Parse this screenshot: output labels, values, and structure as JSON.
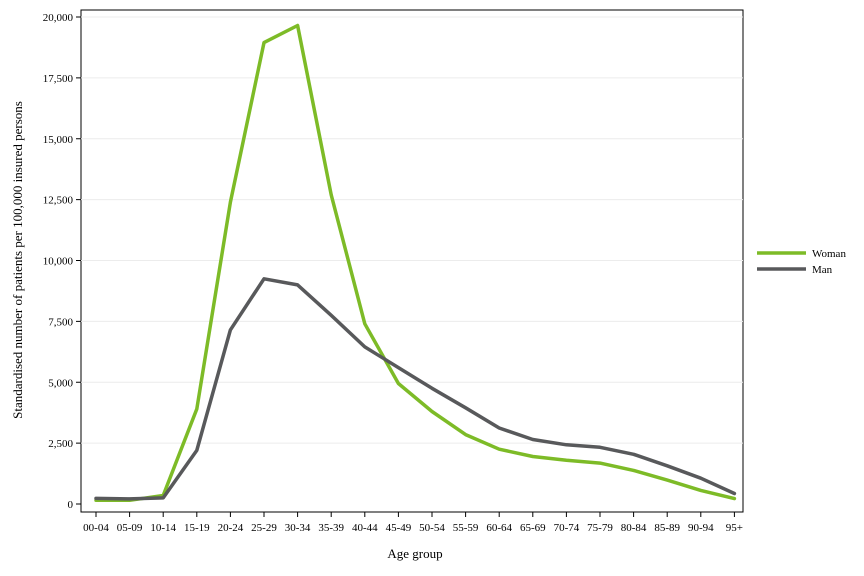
{
  "chart_data": {
    "type": "line",
    "title": "",
    "xlabel": "Age group",
    "ylabel": "Standardised number of patients per 100,000 insured persons",
    "categories": [
      "00-04",
      "05-09",
      "10-14",
      "15-19",
      "20-24",
      "25-29",
      "30-34",
      "35-39",
      "40-44",
      "45-49",
      "50-54",
      "55-59",
      "60-64",
      "65-69",
      "70-74",
      "75-79",
      "80-84",
      "85-89",
      "90-94",
      "95+"
    ],
    "ylim": [
      0,
      20000
    ],
    "yticks": [
      0,
      2500,
      5000,
      7500,
      10000,
      12500,
      15000,
      17500,
      20000
    ],
    "ytick_labels": [
      "0",
      "2,500",
      "5,000",
      "7,500",
      "10,000",
      "12,500",
      "15,000",
      "17,500",
      "20,000"
    ],
    "grid": true,
    "legend_position": "right",
    "series": [
      {
        "name": "Woman",
        "color": "#7dbb27",
        "values": [
          150,
          150,
          350,
          3900,
          12400,
          18950,
          19650,
          12700,
          7400,
          4950,
          3800,
          2850,
          2250,
          1950,
          1800,
          1680,
          1380,
          980,
          560,
          220
        ]
      },
      {
        "name": "Man",
        "color": "#58595b",
        "values": [
          230,
          210,
          250,
          2200,
          7150,
          9250,
          9000,
          7750,
          6450,
          5600,
          4750,
          3950,
          3120,
          2650,
          2430,
          2330,
          2040,
          1570,
          1060,
          430
        ]
      }
    ]
  }
}
